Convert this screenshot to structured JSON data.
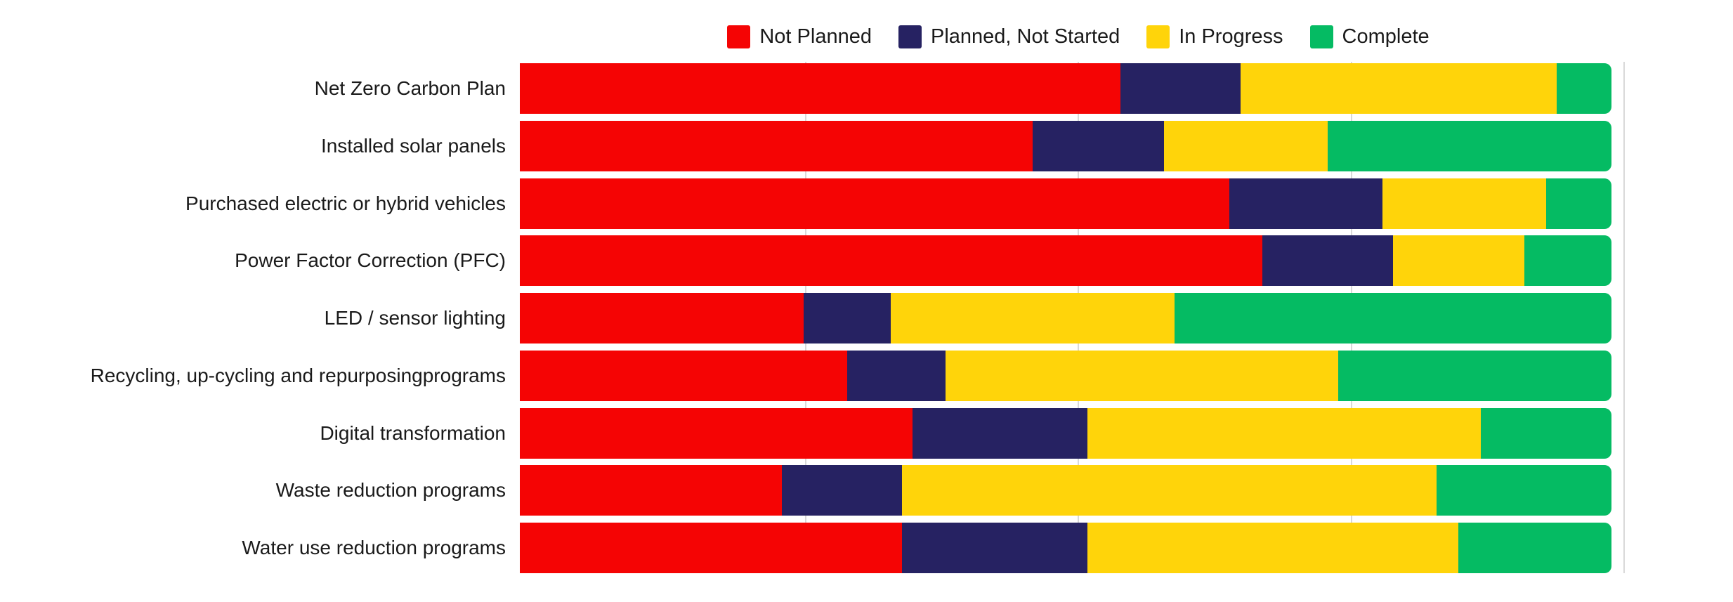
{
  "background": "#FFFFFF",
  "text_color": "#1A1A1A",
  "chart_data": {
    "type": "bar",
    "orientation": "horizontal",
    "stacked": true,
    "unit": "percent",
    "xlim": [
      0,
      100
    ],
    "grid_on": true,
    "gridlines_at_percent": [
      25,
      50,
      75,
      100
    ],
    "grid_color": "#D9D9D9",
    "legend_position": "top",
    "title": "",
    "xlabel": "",
    "ylabel": "",
    "categories": [
      "Net Zero Carbon Plan",
      "Installed solar panels",
      "Purchased electric or hybrid vehicles",
      "Power Factor Correction (PFC)",
      "LED / sensor lighting",
      "Recycling, up-cycling and repurposingprograms",
      "Digital transformation",
      "Waste reduction programs",
      "Water use reduction programs"
    ],
    "series": [
      {
        "name": "Not Planned",
        "color": "#F50404",
        "values": [
          55,
          47,
          65,
          68,
          26,
          30,
          36,
          24,
          35
        ]
      },
      {
        "name": "Planned, Not Started",
        "color": "#262262",
        "values": [
          11,
          12,
          14,
          12,
          8,
          9,
          16,
          11,
          17
        ]
      },
      {
        "name": "In Progress",
        "color": "#FFD40A",
        "values": [
          29,
          15,
          15,
          12,
          26,
          36,
          36,
          49,
          34
        ]
      },
      {
        "name": "Complete",
        "color": "#05BB63",
        "values": [
          5,
          26,
          6,
          8,
          40,
          25,
          12,
          16,
          14
        ]
      }
    ]
  }
}
